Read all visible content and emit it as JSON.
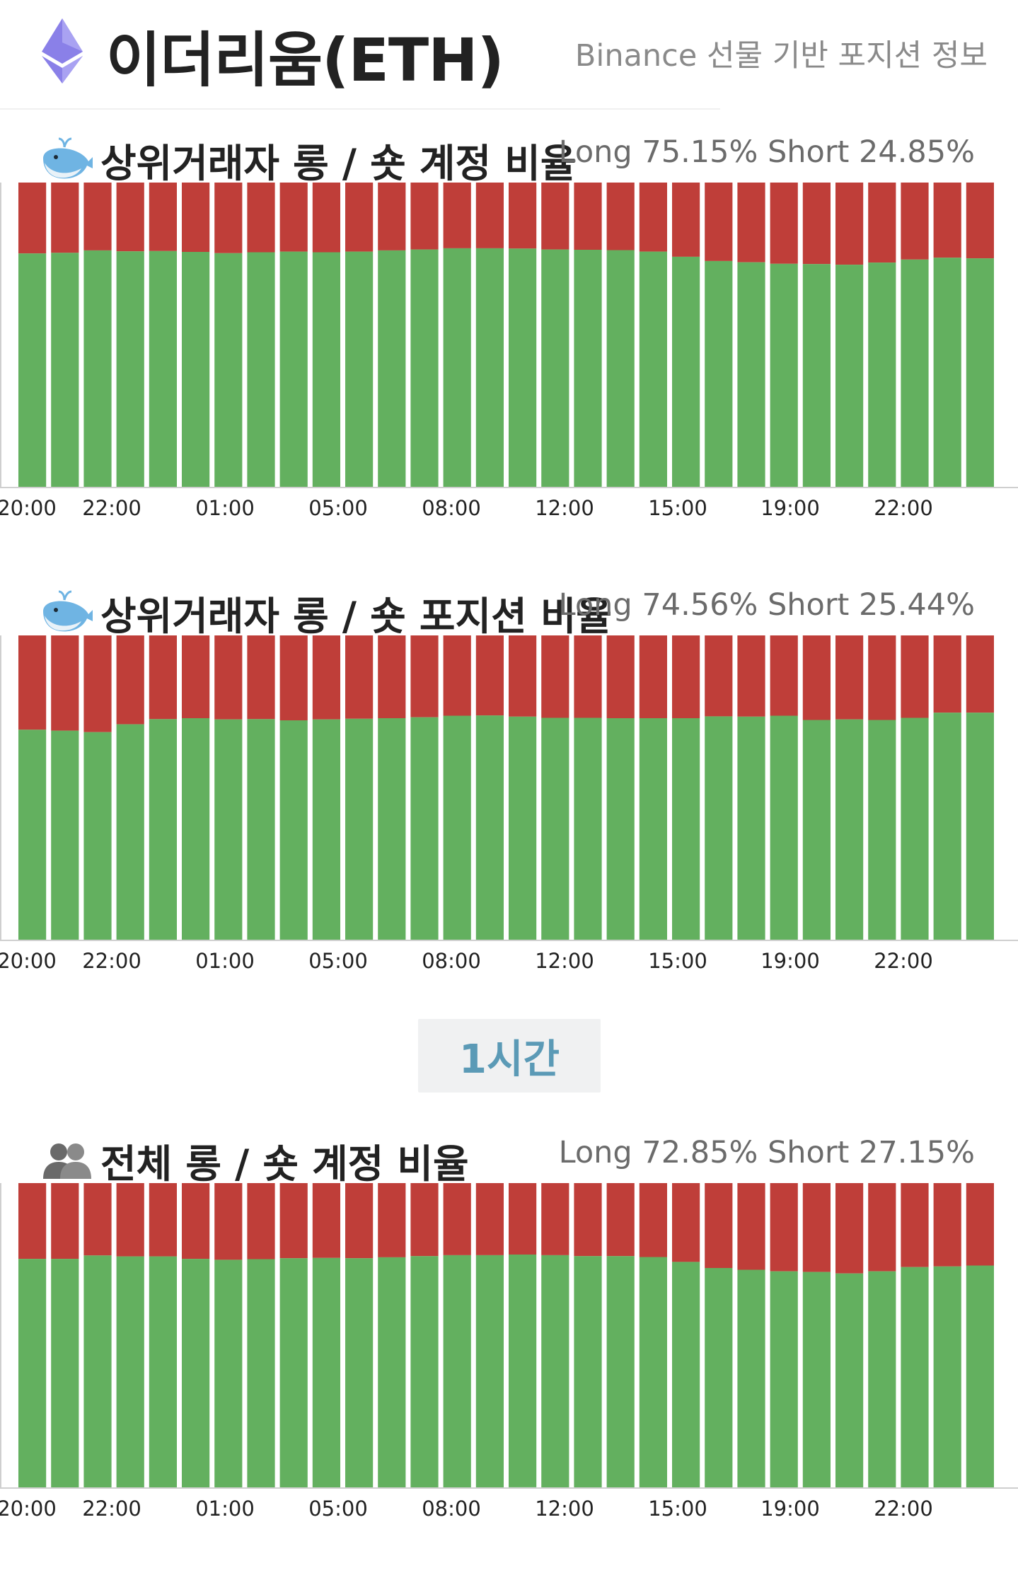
{
  "header": {
    "title": "이더리움(ETH)",
    "subtitle": "Binance 선물 기반 포지션 정보",
    "icon": "ethereum-icon"
  },
  "period_badge": "1시간",
  "colors": {
    "long": "#63b05f",
    "short": "#bf3e39",
    "axis": "#cfcfcf"
  },
  "chart_data": [
    {
      "type": "bar",
      "title": "상위거래자 롱 / 숏 계정 비율",
      "icon": "whale-icon",
      "ratio_text": "Long 75.15% Short 24.85%",
      "x_tick_labels": [
        "20:00",
        "22:00",
        "01:00",
        "05:00",
        "08:00",
        "12:00",
        "15:00",
        "19:00",
        "22:00"
      ],
      "ylim": [
        0,
        100
      ],
      "series": [
        {
          "name": "Long",
          "values": [
            76.7,
            76.9,
            77.7,
            77.4,
            77.5,
            77.2,
            76.8,
            77.1,
            77.3,
            77.1,
            77.3,
            77.7,
            78.0,
            78.4,
            78.4,
            78.3,
            78.0,
            77.9,
            77.8,
            77.3,
            75.6,
            74.2,
            73.8,
            73.3,
            73.2,
            73.0,
            73.7,
            74.7,
            75.3,
            75.1
          ]
        },
        {
          "name": "Short",
          "values": [
            23.3,
            23.1,
            22.3,
            22.6,
            22.5,
            22.8,
            23.2,
            22.9,
            22.7,
            22.9,
            22.7,
            22.3,
            22.0,
            21.6,
            21.6,
            21.7,
            22.0,
            22.1,
            22.2,
            22.7,
            24.4,
            25.8,
            26.2,
            26.7,
            26.8,
            27.0,
            26.3,
            25.3,
            24.7,
            24.9
          ]
        }
      ]
    },
    {
      "type": "bar",
      "title": "상위거래자 롱 / 숏 포지션 비율",
      "icon": "whale-icon",
      "ratio_text": "Long 74.56% Short 25.44%",
      "x_tick_labels": [
        "20:00",
        "22:00",
        "01:00",
        "05:00",
        "08:00",
        "12:00",
        "15:00",
        "19:00",
        "22:00"
      ],
      "ylim": [
        0,
        100
      ],
      "series": [
        {
          "name": "Long",
          "values": [
            69.0,
            68.7,
            68.2,
            70.8,
            72.5,
            72.8,
            72.4,
            72.5,
            72.1,
            72.4,
            72.6,
            72.8,
            73.1,
            73.6,
            73.7,
            73.3,
            72.9,
            72.9,
            72.8,
            72.8,
            72.8,
            73.4,
            73.3,
            73.6,
            72.2,
            72.4,
            72.2,
            72.9,
            74.6,
            74.6
          ]
        },
        {
          "name": "Short",
          "values": [
            31.0,
            31.3,
            31.8,
            29.2,
            27.5,
            27.2,
            27.6,
            27.5,
            27.9,
            27.6,
            27.4,
            27.2,
            26.9,
            26.4,
            26.3,
            26.7,
            27.1,
            27.1,
            27.2,
            27.2,
            27.2,
            26.6,
            26.7,
            26.4,
            27.8,
            27.6,
            27.8,
            27.1,
            25.4,
            25.4
          ]
        }
      ]
    },
    {
      "type": "bar",
      "title": "전체 롱 / 숏 계정 비율",
      "icon": "users-icon",
      "ratio_text": "Long 72.85% Short 27.15%",
      "x_tick_labels": [
        "20:00",
        "22:00",
        "01:00",
        "05:00",
        "08:00",
        "12:00",
        "15:00",
        "19:00",
        "22:00"
      ],
      "ylim": [
        0,
        100
      ],
      "series": [
        {
          "name": "Long",
          "values": [
            75.1,
            75.1,
            76.2,
            75.9,
            75.9,
            75.1,
            74.8,
            75.0,
            75.3,
            75.4,
            75.3,
            75.6,
            76.0,
            76.3,
            76.3,
            76.5,
            76.3,
            76.0,
            76.0,
            75.7,
            74.1,
            72.1,
            71.5,
            71.0,
            70.8,
            70.3,
            71.0,
            72.4,
            72.6,
            72.9
          ]
        },
        {
          "name": "Short",
          "values": [
            24.9,
            24.9,
            23.8,
            24.1,
            24.1,
            24.9,
            25.2,
            25.0,
            24.7,
            24.6,
            24.7,
            24.4,
            24.0,
            23.7,
            23.7,
            23.5,
            23.7,
            24.0,
            24.0,
            24.3,
            25.9,
            27.9,
            28.5,
            29.0,
            29.2,
            29.7,
            29.0,
            27.6,
            27.4,
            27.1
          ]
        }
      ]
    }
  ]
}
